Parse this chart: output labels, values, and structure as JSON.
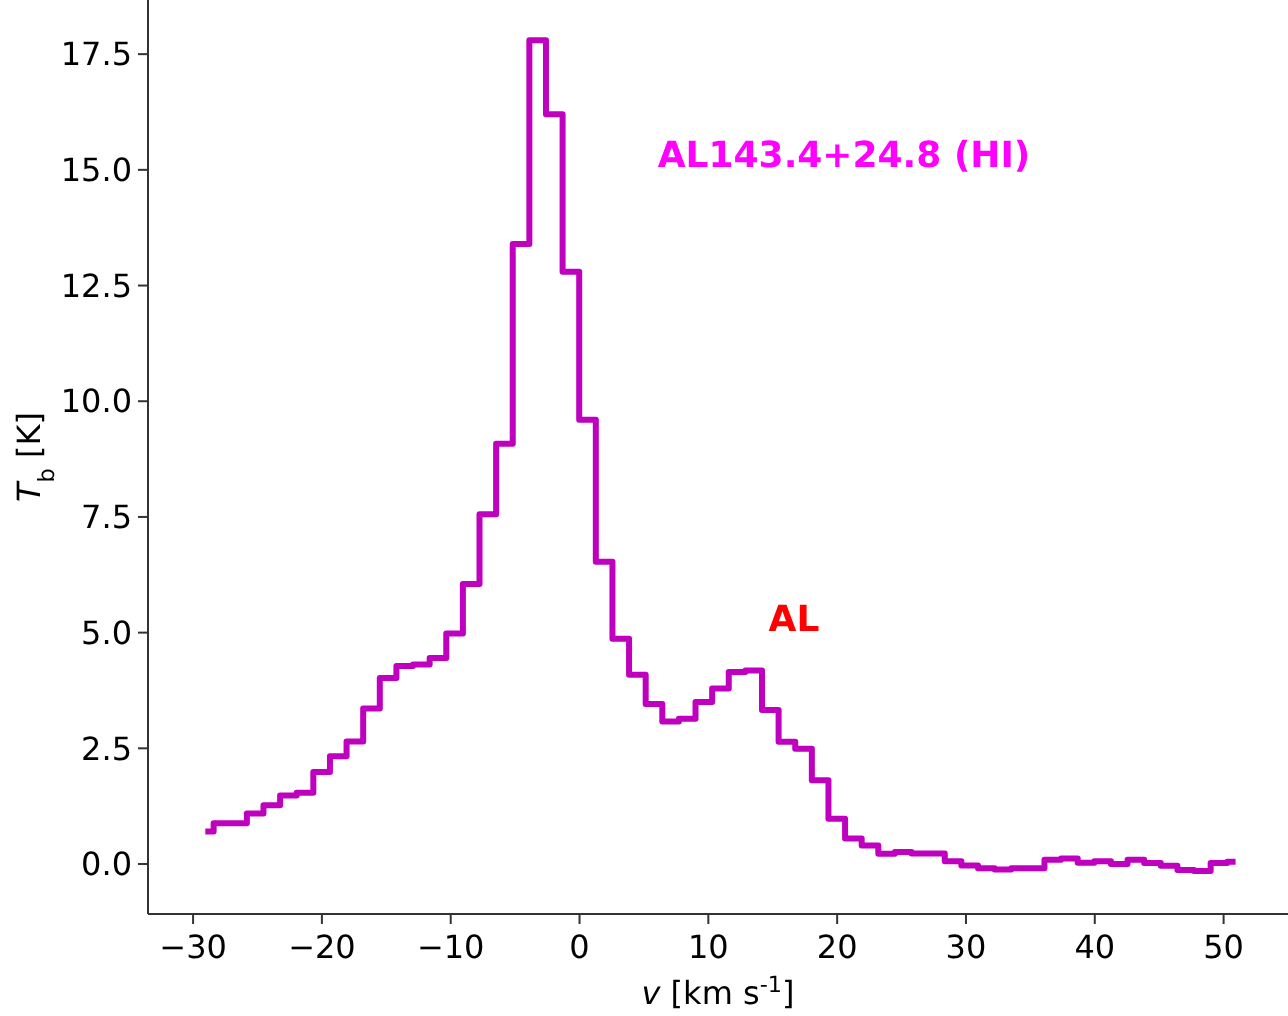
{
  "chart_data": {
    "type": "step",
    "xlabel": "v [km s$^{-1}$]",
    "ylabel": "T$_{b}$ [K]",
    "x": [
      -29.05,
      -27.76,
      -26.47,
      -25.18,
      -23.89,
      -22.6,
      -21.31,
      -20.02,
      -18.73,
      -17.44,
      -16.15,
      -14.86,
      -13.57,
      -12.28,
      -10.99,
      -9.7,
      -8.41,
      -7.12,
      -5.83,
      -4.54,
      -3.25,
      -1.96,
      -0.67,
      0.62,
      1.91,
      3.2,
      4.49,
      5.78,
      7.07,
      8.36,
      9.65,
      10.94,
      12.23,
      13.52,
      14.81,
      16.1,
      17.39,
      18.68,
      19.97,
      21.26,
      22.55,
      23.84,
      25.13,
      26.42,
      27.71,
      29.0,
      30.29,
      31.58,
      32.87,
      34.16,
      35.45,
      36.74,
      38.03,
      39.32,
      40.61,
      41.9,
      43.19,
      44.48,
      45.77,
      47.06,
      48.35,
      49.64,
      50.93
    ],
    "series": [
      {
        "color": "#bf00bf",
        "values": [
          0.7,
          0.88,
          0.88,
          1.09,
          1.27,
          1.48,
          1.54,
          1.99,
          2.33,
          2.65,
          3.36,
          4.02,
          4.28,
          4.31,
          4.45,
          4.98,
          6.05,
          7.56,
          9.08,
          13.4,
          17.8,
          16.2,
          12.8,
          9.6,
          6.53,
          4.87,
          4.09,
          3.46,
          3.08,
          3.14,
          3.5,
          3.79,
          4.15,
          4.18,
          3.33,
          2.64,
          2.49,
          1.81,
          0.98,
          0.55,
          0.4,
          0.22,
          0.26,
          0.23,
          0.23,
          0.06,
          -0.03,
          -0.09,
          -0.12,
          -0.09,
          -0.09,
          0.09,
          0.12,
          0.03,
          0.06,
          0.0,
          0.09,
          0.02,
          -0.04,
          -0.13,
          -0.15,
          0.02,
          0.05
        ]
      }
    ],
    "xlim": [
      -33.5,
      55
    ],
    "ylim": [
      -1.08,
      18.67
    ],
    "xticks": [
      {
        "value": -30,
        "label": "−30"
      },
      {
        "value": -20,
        "label": "−20"
      },
      {
        "value": -10,
        "label": "−10"
      },
      0,
      10,
      20,
      30,
      40,
      50
    ],
    "yticks": [
      {
        "value": 0,
        "label": "0.0"
      },
      {
        "value": 2.5,
        "label": "2.5"
      },
      {
        "value": 5,
        "label": "5.0"
      },
      {
        "value": 7.5,
        "label": "7.5"
      },
      {
        "value": 10,
        "label": "10.0"
      },
      {
        "value": 12.5,
        "label": "12.5"
      },
      {
        "value": 15,
        "label": "15.0"
      },
      {
        "value": 17.5,
        "label": "17.5"
      }
    ],
    "annotations": [
      "AL143.4+24.8 (HI)",
      "AL"
    ],
    "grid": false,
    "line_style": "solid"
  }
}
